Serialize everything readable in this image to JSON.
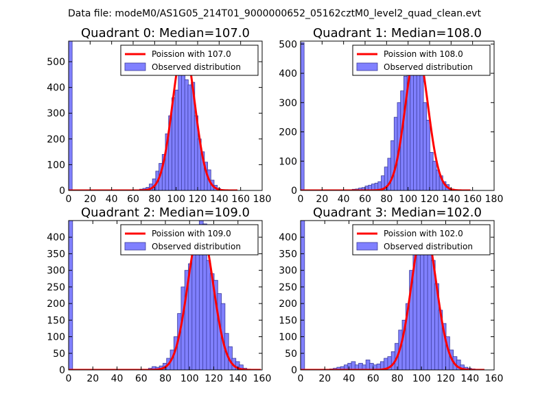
{
  "figure": {
    "suptitle": "Data file: modeM0/AS1G05_214T01_9000000652_05162cztM0_level2_quad_clean.evt",
    "bar_color": "#8080ff",
    "bar_edge": "#3a3a9a",
    "curve_color": "#ff0000"
  },
  "chart_data": [
    {
      "type": "bar",
      "title": "Quadrant 0: Median=107.0",
      "xlim": [
        0,
        180
      ],
      "ylim": [
        0,
        580
      ],
      "xticks": [
        0,
        20,
        40,
        60,
        80,
        100,
        120,
        140,
        160,
        180
      ],
      "yticks": [
        0,
        100,
        200,
        300,
        400,
        500
      ],
      "bin_width": 3.3,
      "legend": {
        "curve": "Poission with 107.0",
        "bars": "Observed distribution",
        "position": "top-right"
      },
      "poisson_mean": 107.0,
      "poisson_peak": 560,
      "bins_start": [
        0,
        63,
        66,
        69,
        72,
        75,
        78,
        81,
        84,
        87,
        90,
        93,
        96,
        99,
        102,
        105,
        108,
        111,
        114,
        117,
        120,
        123,
        126,
        129,
        132,
        135,
        138,
        141
      ],
      "counts": [
        580,
        2,
        5,
        8,
        12,
        25,
        45,
        75,
        105,
        140,
        220,
        290,
        360,
        390,
        450,
        480,
        430,
        410,
        420,
        290,
        200,
        150,
        110,
        80,
        40,
        20,
        8,
        2
      ]
    },
    {
      "type": "bar",
      "title": "Quadrant 1: Median=108.0",
      "xlim": [
        0,
        180
      ],
      "ylim": [
        0,
        510
      ],
      "xticks": [
        0,
        20,
        40,
        60,
        80,
        100,
        120,
        140,
        160,
        180
      ],
      "yticks": [
        0,
        100,
        200,
        300,
        400,
        500
      ],
      "bin_width": 3.3,
      "legend": {
        "curve": "Poission with 108.0",
        "bars": "Observed distribution",
        "position": "top-right"
      },
      "poisson_mean": 108.0,
      "poisson_peak": 485,
      "bins_start": [
        0,
        45,
        48,
        51,
        54,
        57,
        60,
        63,
        66,
        69,
        72,
        75,
        78,
        81,
        84,
        87,
        90,
        93,
        96,
        99,
        102,
        105,
        108,
        111,
        114,
        117,
        120,
        123,
        126,
        129,
        132,
        135,
        138,
        141
      ],
      "counts": [
        505,
        2,
        4,
        5,
        8,
        10,
        15,
        18,
        22,
        25,
        30,
        50,
        80,
        110,
        170,
        250,
        300,
        340,
        390,
        470,
        490,
        420,
        430,
        430,
        300,
        240,
        130,
        100,
        70,
        50,
        30,
        20,
        5,
        2
      ]
    },
    {
      "type": "bar",
      "title": "Quadrant 2: Median=109.0",
      "xlim": [
        0,
        160
      ],
      "ylim": [
        0,
        450
      ],
      "xticks": [
        0,
        20,
        40,
        60,
        80,
        100,
        120,
        140,
        160
      ],
      "yticks": [
        0,
        50,
        100,
        150,
        200,
        250,
        300,
        350,
        400
      ],
      "bin_width": 3.3,
      "legend": {
        "curve": "Poission with 109.0",
        "bars": "Observed distribution",
        "position": "top-right"
      },
      "poisson_mean": 109.0,
      "poisson_peak": 430,
      "bins_start": [
        0,
        63,
        66,
        69,
        72,
        75,
        78,
        81,
        84,
        87,
        90,
        93,
        96,
        99,
        102,
        105,
        108,
        111,
        114,
        117,
        120,
        123,
        126,
        129,
        132,
        135,
        138,
        141,
        144,
        147
      ],
      "counts": [
        450,
        2,
        5,
        10,
        8,
        12,
        20,
        35,
        60,
        100,
        170,
        250,
        300,
        320,
        350,
        400,
        450,
        440,
        330,
        290,
        270,
        230,
        200,
        110,
        70,
        35,
        25,
        15,
        5,
        2
      ]
    },
    {
      "type": "bar",
      "title": "Quadrant 3: Median=102.0",
      "xlim": [
        0,
        160
      ],
      "ylim": [
        0,
        450
      ],
      "xticks": [
        0,
        20,
        40,
        60,
        80,
        100,
        120,
        140,
        160
      ],
      "yticks": [
        0,
        50,
        100,
        150,
        200,
        250,
        300,
        350,
        400
      ],
      "bin_width": 3.3,
      "legend": {
        "curve": "Poission with 102.0",
        "bars": "Observed distribution",
        "position": "top-right"
      },
      "poisson_mean": 102.0,
      "poisson_peak": 435,
      "bins_start": [
        0,
        24,
        27,
        30,
        33,
        36,
        39,
        42,
        45,
        48,
        51,
        54,
        57,
        60,
        63,
        66,
        69,
        72,
        75,
        78,
        81,
        84,
        87,
        90,
        93,
        96,
        99,
        102,
        105,
        108,
        111,
        114,
        117,
        120,
        123,
        126,
        129,
        132,
        135,
        138,
        141,
        144,
        147
      ],
      "counts": [
        450,
        3,
        5,
        8,
        10,
        15,
        20,
        25,
        15,
        20,
        15,
        30,
        20,
        15,
        18,
        25,
        35,
        40,
        55,
        80,
        120,
        150,
        200,
        300,
        350,
        400,
        410,
        380,
        360,
        330,
        260,
        180,
        140,
        100,
        60,
        40,
        30,
        15,
        8,
        5,
        3,
        2,
        1
      ]
    }
  ]
}
